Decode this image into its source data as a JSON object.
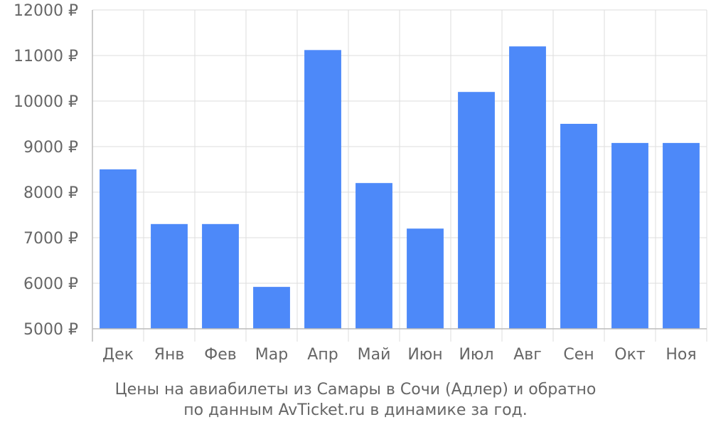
{
  "chart_data": {
    "type": "bar",
    "categories": [
      "Дек",
      "Янв",
      "Фев",
      "Мар",
      "Апр",
      "Май",
      "Июн",
      "Июл",
      "Авг",
      "Сен",
      "Окт",
      "Ноя"
    ],
    "values": [
      8500,
      7300,
      7300,
      5920,
      11120,
      8200,
      7200,
      10200,
      11200,
      9500,
      9080,
      9080
    ],
    "ylim": [
      5000,
      12000
    ],
    "yticks": [
      5000,
      6000,
      7000,
      8000,
      9000,
      10000,
      11000,
      12000
    ],
    "ytick_suffix": " ₽",
    "grid": true,
    "bar_color": "#4d89f9",
    "title": "",
    "xlabel": "",
    "ylabel": ""
  },
  "caption": {
    "line1": "Цены на авиабилеты из Самары в Сочи (Адлер) и обратно",
    "line2": "по данным AvTicket.ru в динамике за год."
  }
}
